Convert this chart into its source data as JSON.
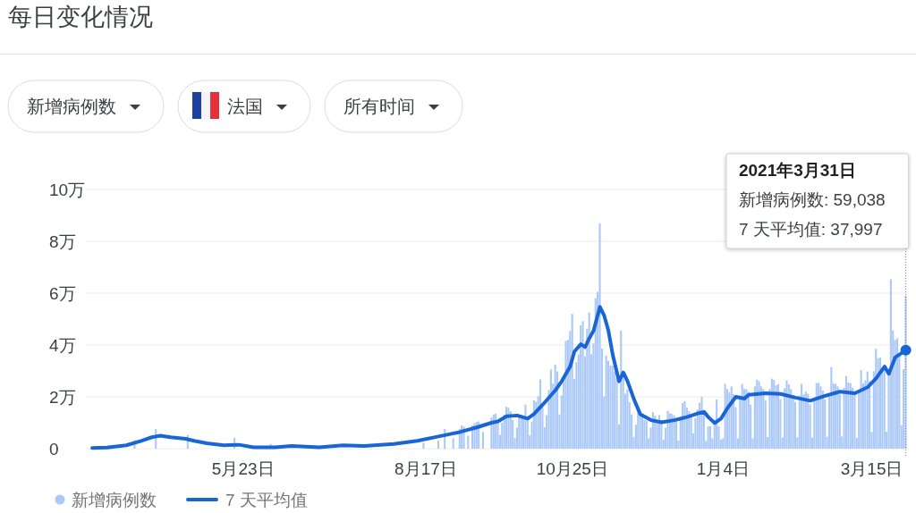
{
  "chart_data": {
    "type": "bar",
    "title": "每日变化情况",
    "annotations": [
      "新增病例数",
      "法国",
      "所有时间",
      "2021年3月31日",
      "新增病例数: 59,038",
      "7 天平均值: 37,997"
    ],
    "xlim": [
      "2020-03-10",
      "2021-04-01"
    ],
    "xticks": [
      {
        "value": "2020-05-23",
        "label": "5月23日"
      },
      {
        "value": "2020-08-17",
        "label": "8月17日"
      },
      {
        "value": "2020-10-25",
        "label": "10月25日"
      },
      {
        "value": "2021-01-04",
        "label": "1月4日"
      },
      {
        "value": "2021-03-15",
        "label": "3月15日"
      }
    ],
    "ylim": [
      0,
      10
    ],
    "yticks": [
      0,
      {
        "value": 2,
        "label": "2万"
      },
      {
        "value": 4,
        "label": "4万"
      },
      {
        "value": 6,
        "label": "6万"
      },
      {
        "value": 8,
        "label": "8万"
      },
      {
        "value": 10,
        "label": "10万"
      }
    ],
    "grid": "y",
    "legend": "bottom",
    "x": [
      "2020-04-02",
      "2020-04-03",
      "2020-04-04",
      "2020-04-05",
      "2020-04-06",
      "2020-04-07",
      "2020-04-08",
      "2020-04-09",
      "2020-04-10",
      "2020-04-11",
      "2020-04-12",
      "2020-04-13",
      "2020-04-14",
      "2020-04-15",
      "2020-04-16",
      "2020-04-17",
      "2020-04-18",
      "2020-04-19",
      "2020-04-20",
      "2020-04-21",
      "2020-04-22",
      "2020-04-23",
      "2020-04-24",
      "2020-04-25",
      "2020-04-26",
      "2020-04-27",
      "2020-04-28",
      "2020-04-29",
      "2020-04-30",
      "2020-05-01",
      "2020-05-02",
      "2020-05-03",
      "2020-05-04",
      "2020-05-05",
      "2020-05-06",
      "2020-05-07",
      "2020-05-08",
      "2020-05-09",
      "2020-05-10",
      "2020-05-11",
      "2020-05-12",
      "2020-05-13",
      "2020-05-14",
      "2020-05-15",
      "2020-05-16",
      "2020-05-17",
      "2020-05-18",
      "2020-05-19",
      "2020-05-20",
      "2020-05-21",
      "2020-05-22",
      "2020-05-23",
      "2020-05-24",
      "2020-05-25",
      "2020-05-26",
      "2020-05-27",
      "2020-05-28",
      "2020-05-29",
      "2020-05-30",
      "2020-05-31",
      "2020-06-01",
      "2020-06-02",
      "2020-06-03",
      "2020-06-04",
      "2020-06-05",
      "2020-06-06",
      "2020-06-07",
      "2020-06-08",
      "2020-06-09",
      "2020-06-10",
      "2020-06-11",
      "2020-06-12",
      "2020-06-13",
      "2020-06-14",
      "2020-06-15",
      "2020-06-16",
      "2020-06-17",
      "2020-06-18",
      "2020-06-19",
      "2020-06-20",
      "2020-06-21",
      "2020-06-22",
      "2020-06-23",
      "2020-06-24",
      "2020-06-25",
      "2020-06-26",
      "2020-06-27",
      "2020-06-28",
      "2020-06-29",
      "2020-06-30",
      "2020-07-01",
      "2020-07-02",
      "2020-07-03",
      "2020-07-04",
      "2020-07-05",
      "2020-07-06",
      "2020-07-07",
      "2020-07-08",
      "2020-07-09",
      "2020-07-10",
      "2020-07-11",
      "2020-07-12",
      "2020-07-13",
      "2020-07-14",
      "2020-07-15",
      "2020-07-16",
      "2020-07-17",
      "2020-07-18",
      "2020-07-19",
      "2020-07-20",
      "2020-07-21",
      "2020-07-22",
      "2020-07-23",
      "2020-07-24",
      "2020-07-25",
      "2020-07-26",
      "2020-07-27",
      "2020-07-28",
      "2020-07-29",
      "2020-07-30",
      "2020-07-31",
      "2020-08-01",
      "2020-08-02",
      "2020-08-03",
      "2020-08-04",
      "2020-08-05",
      "2020-08-06",
      "2020-08-07",
      "2020-08-08",
      "2020-08-09",
      "2020-08-10",
      "2020-08-11",
      "2020-08-12",
      "2020-08-13",
      "2020-08-14",
      "2020-08-15",
      "2020-08-16",
      "2020-08-17",
      "2020-08-18",
      "2020-08-19",
      "2020-08-20",
      "2020-08-21",
      "2020-08-22",
      "2020-08-23",
      "2020-08-24",
      "2020-08-25",
      "2020-08-26",
      "2020-08-27",
      "2020-08-28",
      "2020-08-29",
      "2020-08-30",
      "2020-08-31",
      "2020-09-01",
      "2020-09-02",
      "2020-09-03",
      "2020-09-04",
      "2020-09-05",
      "2020-09-06",
      "2020-09-07",
      "2020-09-08",
      "2020-09-09",
      "2020-09-10",
      "2020-09-11",
      "2020-09-12",
      "2020-09-13",
      "2020-09-14",
      "2020-09-15",
      "2020-09-16",
      "2020-09-17",
      "2020-09-18",
      "2020-09-19",
      "2020-09-20",
      "2020-09-21",
      "2020-09-22",
      "2020-09-23",
      "2020-09-24",
      "2020-09-25",
      "2020-09-26",
      "2020-09-27",
      "2020-09-28",
      "2020-09-29",
      "2020-09-30",
      "2020-10-01",
      "2020-10-02",
      "2020-10-03",
      "2020-10-04",
      "2020-10-05",
      "2020-10-06",
      "2020-10-07",
      "2020-10-08",
      "2020-10-09",
      "2020-10-10",
      "2020-10-11",
      "2020-10-12",
      "2020-10-13",
      "2020-10-14",
      "2020-10-15",
      "2020-10-16",
      "2020-10-17",
      "2020-10-18",
      "2020-10-19",
      "2020-10-20",
      "2020-10-21",
      "2020-10-22",
      "2020-10-23",
      "2020-10-24",
      "2020-10-25",
      "2020-10-26",
      "2020-10-27",
      "2020-10-28",
      "2020-10-29",
      "2020-10-30",
      "2020-10-31",
      "2020-11-01",
      "2020-11-02",
      "2020-11-03",
      "2020-11-04",
      "2020-11-05",
      "2020-11-06",
      "2020-11-07",
      "2020-11-08",
      "2020-11-09",
      "2020-11-10",
      "2020-11-11",
      "2020-11-12",
      "2020-11-13",
      "2020-11-14",
      "2020-11-15",
      "2020-11-16",
      "2020-11-17",
      "2020-11-18",
      "2020-11-19",
      "2020-11-20",
      "2020-11-21",
      "2020-11-22",
      "2020-11-23",
      "2020-11-24",
      "2020-11-25",
      "2020-11-26",
      "2020-11-27",
      "2020-11-28",
      "2020-11-29",
      "2020-11-30",
      "2020-12-01",
      "2020-12-02",
      "2020-12-03",
      "2020-12-04",
      "2020-12-05",
      "2020-12-06",
      "2020-12-07",
      "2020-12-08",
      "2020-12-09",
      "2020-12-10",
      "2020-12-11",
      "2020-12-12",
      "2020-12-13",
      "2020-12-14",
      "2020-12-15",
      "2020-12-16",
      "2020-12-17",
      "2020-12-18",
      "2020-12-19",
      "2020-12-20",
      "2020-12-21",
      "2020-12-22",
      "2020-12-23",
      "2020-12-24",
      "2020-12-25",
      "2020-12-26",
      "2020-12-27",
      "2020-12-28",
      "2020-12-29",
      "2020-12-30",
      "2020-12-31",
      "2021-01-01",
      "2021-01-02",
      "2021-01-03",
      "2021-01-04",
      "2021-01-05",
      "2021-01-06",
      "2021-01-07",
      "2021-01-08",
      "2021-01-09",
      "2021-01-10",
      "2021-01-11",
      "2021-01-12",
      "2021-01-13",
      "2021-01-14",
      "2021-01-15",
      "2021-01-16",
      "2021-01-17",
      "2021-01-18",
      "2021-01-19",
      "2021-01-20",
      "2021-01-21",
      "2021-01-22",
      "2021-01-23",
      "2021-01-24",
      "2021-01-25",
      "2021-01-26",
      "2021-01-27",
      "2021-01-28",
      "2021-01-29",
      "2021-01-30",
      "2021-01-31",
      "2021-02-01",
      "2021-02-02",
      "2021-02-03",
      "2021-02-04",
      "2021-02-05",
      "2021-02-06",
      "2021-02-07",
      "2021-02-08",
      "2021-02-09",
      "2021-02-10",
      "2021-02-11",
      "2021-02-12",
      "2021-02-13",
      "2021-02-14",
      "2021-02-15",
      "2021-02-16",
      "2021-02-17",
      "2021-02-18",
      "2021-02-19",
      "2021-02-20",
      "2021-02-21",
      "2021-02-22",
      "2021-02-23",
      "2021-02-24",
      "2021-02-25",
      "2021-02-26",
      "2021-02-27",
      "2021-02-28",
      "2021-03-01",
      "2021-03-02",
      "2021-03-03",
      "2021-03-04",
      "2021-03-05",
      "2021-03-06",
      "2021-03-07",
      "2021-03-08",
      "2021-03-09",
      "2021-03-10",
      "2021-03-11",
      "2021-03-12",
      "2021-03-13",
      "2021-03-14",
      "2021-03-15",
      "2021-03-16",
      "2021-03-17",
      "2021-03-18",
      "2021-03-19",
      "2021-03-20",
      "2021-03-21",
      "2021-03-22",
      "2021-03-23",
      "2021-03-24",
      "2021-03-25",
      "2021-03-26",
      "2021-03-27",
      "2021-03-28",
      "2021-03-29",
      "2021-03-30",
      "2021-03-31"
    ],
    "series": [
      {
        "name": "新增病例数",
        "color": "#aac8f8",
        "values": [
          0.33,
          null,
          null,
          null,
          null,
          null,
          null,
          null,
          null,
          null,
          0.76,
          null,
          null,
          null,
          null,
          null,
          null,
          null,
          null,
          null,
          null,
          null,
          null,
          null,
          null,
          0.53,
          null,
          null,
          null,
          null,
          null,
          null,
          null,
          null,
          null,
          null,
          null,
          null,
          null,
          null,
          null,
          null,
          null,
          null,
          null,
          null,
          null,
          0.41,
          null,
          null,
          null,
          null,
          null,
          null,
          null,
          null,
          null,
          null,
          null,
          null,
          null,
          null,
          null,
          null,
          0.18,
          null,
          null,
          null,
          null,
          null,
          null,
          null,
          null,
          null,
          null,
          null,
          null,
          null,
          null,
          null,
          null,
          null,
          null,
          null,
          null,
          null,
          null,
          null,
          null,
          null,
          null,
          null,
          null,
          null,
          null,
          null,
          null,
          null,
          null,
          null,
          null,
          null,
          null,
          null,
          null,
          null,
          null,
          null,
          null,
          null,
          null,
          null,
          null,
          null,
          null,
          null,
          null,
          null,
          null,
          null,
          null,
          null,
          null,
          null,
          null,
          null,
          null,
          null,
          null,
          null,
          null,
          null,
          null,
          null,
          null,
          null,
          0.23,
          null,
          null,
          null,
          null,
          null,
          null,
          0.31,
          null,
          null,
          0.76,
          null,
          null,
          null,
          0.4,
          null,
          null,
          0.76,
          0.9,
          0.85,
          null,
          0.5,
          null,
          0.9,
          0.98,
          1.03,
          1.05,
          null,
          0.65,
          null,
          null,
          null,
          1.2,
          1.32,
          1.35,
          1.06,
          0.53,
          1,
          1.31,
          1.61,
          1.58,
          1.44,
          1.11,
          0.41,
          0.81,
          1.28,
          1.3,
          1.21,
          1.69,
          1.26,
          0.51,
          1.05,
          1.87,
          1.81,
          2.03,
          2.67,
          1.61,
          0.83,
          1.29,
          2.26,
          3.06,
          2.51,
          3.24,
          2.98,
          1.32,
          2.05,
          2.67,
          4.16,
          4.2,
          4.54,
          5.2,
          2.68,
          3.34,
          3.64,
          4.76,
          4.92,
          3.56,
          4.63,
          5.25,
          3.64,
          4.06,
          5.8,
          6.05,
          8.69,
          3.86,
          2.02,
          3.59,
          3.39,
          3.21,
          3.21,
          2.98,
          2.72,
          0.94,
          4.55,
          2.84,
          2.12,
          2.29,
          1.79,
          1.32,
          0.45,
          0.92,
          1.63,
          1.36,
          1.25,
          1.12,
          1.08,
          0.4,
          0.81,
          1.41,
          1.27,
          1.12,
          1.29,
          1.1,
          0.34,
          0.81,
          1.46,
          1.37,
          1.34,
          1.29,
          1.15,
          0.31,
          1.15,
          1.76,
          1.83,
          1.58,
          1.44,
          1.21,
          0.59,
          1.18,
          1.51,
          1.77,
          2,
          1.4,
          0.3,
          0.86,
          0.86,
          0.4,
          1.1,
          1.9,
          0.86,
          0.35,
          0.4,
          2.5,
          2.3,
          2.17,
          2.4,
          2.1,
          1.6,
          0.4,
          2.05,
          2.5,
          2.3,
          2.3,
          2.2,
          1.7,
          0.4,
          2.4,
          2.66,
          2.6,
          2.4,
          2.3,
          1.85,
          0.45,
          2.3,
          2.7,
          2.65,
          2.44,
          2.49,
          1.92,
          0.43,
          2.33,
          2.64,
          2.48,
          2.3,
          2.06,
          1.8,
          0.44,
          2.05,
          2.5,
          2.1,
          2.2,
          2.12,
          1.7,
          0.43,
          1.91,
          2.53,
          2.54,
          2.4,
          2.24,
          1.9,
          0.46,
          2.1,
          3.15,
          2.52,
          2.5,
          2.4,
          2.1,
          0.47,
          2.35,
          2.8,
          2.55,
          2.53,
          2.35,
          2.18,
          0.41,
          2.21,
          3.03,
          2.52,
          2.63,
          2.98,
          2.61,
          0.65,
          2.99,
          3.85,
          3.49,
          3.51,
          3.06,
          3.08,
          0.65,
          2.9,
          6.54,
          4.56,
          4.19,
          4.26,
          3.7,
          0.91,
          3.07,
          5.9038
        ]
      },
      {
        "type": "line",
        "name": "7 天平均值",
        "color": "#1a65d6",
        "x": [
          "2020-03-13",
          "2020-03-20",
          "2020-03-29",
          "2020-04-05",
          "2020-04-10",
          "2020-04-14",
          "2020-04-19",
          "2020-04-26",
          "2020-04-30",
          "2020-05-06",
          "2020-05-14",
          "2020-05-21",
          "2020-05-28",
          "2020-06-07",
          "2020-06-15",
          "2020-06-28",
          "2020-07-09",
          "2020-07-19",
          "2020-08-02",
          "2020-08-13",
          "2020-08-23",
          "2020-09-02",
          "2020-09-10",
          "2020-09-17",
          "2020-09-20",
          "2020-09-24",
          "2020-09-29",
          "2020-10-04",
          "2020-10-07",
          "2020-10-11",
          "2020-10-17",
          "2020-10-20",
          "2020-10-24",
          "2020-10-26",
          "2020-10-29",
          "2020-10-31",
          "2020-11-02",
          "2020-11-04",
          "2020-11-07",
          "2020-11-09",
          "2020-11-11",
          "2020-11-13",
          "2020-11-15",
          "2020-11-16",
          "2020-11-18",
          "2020-11-20",
          "2020-11-23",
          "2020-11-26",
          "2020-12-01",
          "2020-12-06",
          "2020-12-12",
          "2020-12-18",
          "2020-12-23",
          "2020-12-26",
          "2020-12-28",
          "2020-12-31",
          "2021-01-03",
          "2021-01-06",
          "2021-01-10",
          "2021-01-14",
          "2021-01-16",
          "2021-01-24",
          "2021-01-31",
          "2021-02-07",
          "2021-02-14",
          "2021-02-21",
          "2021-02-28",
          "2021-03-07",
          "2021-03-13",
          "2021-03-17",
          "2021-03-21",
          "2021-03-23",
          "2021-03-26",
          "2021-03-31"
        ],
        "values": [
          0.03,
          0.04,
          0.13,
          0.3,
          0.44,
          0.5,
          0.44,
          0.38,
          0.3,
          0.21,
          0.13,
          0.15,
          0.05,
          0.05,
          0.1,
          0.05,
          0.13,
          0.1,
          0.18,
          0.3,
          0.47,
          0.64,
          0.82,
          1,
          1.05,
          1.25,
          1.28,
          1.16,
          1.34,
          1.69,
          2.25,
          2.6,
          3.17,
          3.75,
          4.03,
          3.92,
          4.26,
          4.55,
          5.47,
          5.13,
          4.55,
          3.63,
          2.94,
          2.6,
          2.94,
          2.6,
          1.91,
          1.33,
          1.1,
          1.02,
          1.1,
          1.22,
          1.36,
          1.42,
          1.22,
          0.99,
          1.16,
          1.56,
          2,
          1.93,
          2.08,
          2.14,
          2.11,
          1.97,
          1.85,
          2.04,
          2.2,
          2.14,
          2.37,
          2.71,
          3.17,
          2.89,
          3.52,
          3.7997
        ]
      }
    ]
  }
}
